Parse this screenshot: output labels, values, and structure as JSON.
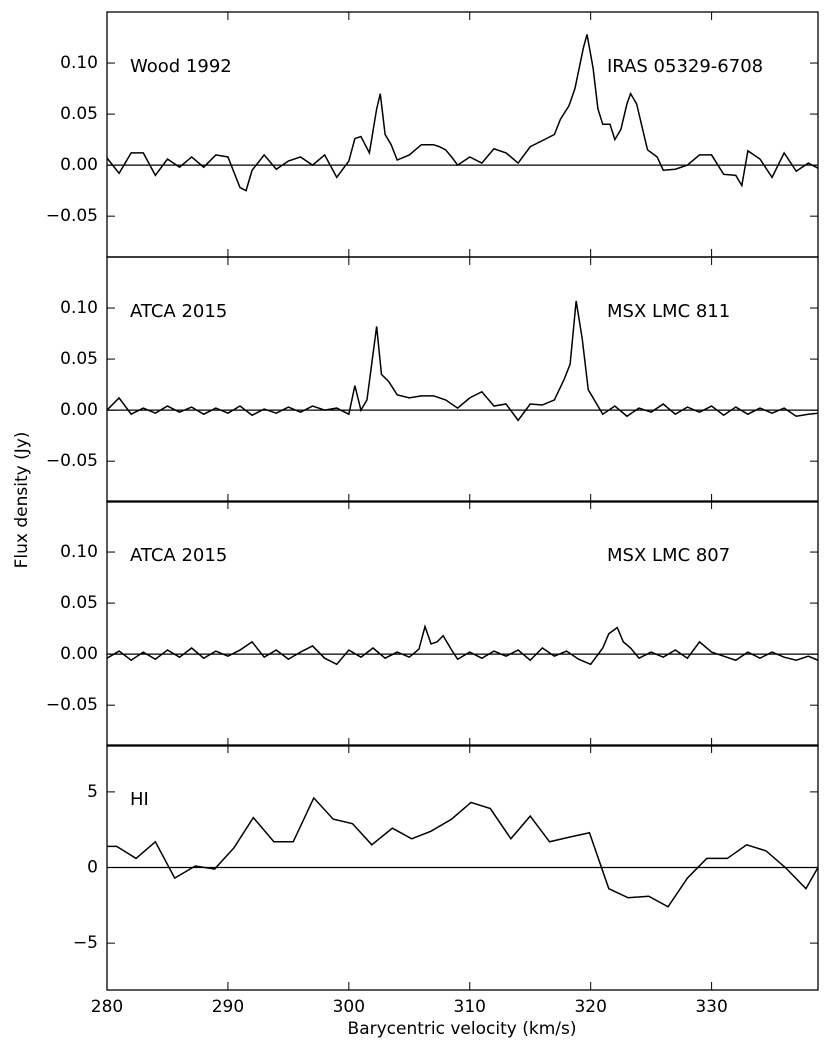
{
  "xlabel": "Barycentric velocity (km/s)",
  "ylabel": "Flux density (Jy)",
  "xlim": [
    280,
    338.8
  ],
  "xticks": [
    280,
    290,
    300,
    310,
    320,
    330
  ],
  "chart_data": [
    {
      "type": "line",
      "annotations": [
        "Wood 1992",
        "IRAS 05329-6708"
      ],
      "color": "#000000",
      "ylim": [
        -0.09,
        0.15
      ],
      "yticks": [
        {
          "value": 0.1,
          "label": "0.10"
        },
        0.05,
        {
          "value": 0,
          "label": "0.00"
        },
        {
          "value": -0.05,
          "label": "−0.05"
        }
      ],
      "x": [
        280,
        281,
        282,
        283,
        284,
        285,
        286,
        287,
        288,
        289,
        290,
        291,
        291.5,
        292,
        293,
        294,
        295,
        296,
        297,
        298,
        299,
        300,
        300.5,
        301,
        301.7,
        302.3,
        302.6,
        303,
        303.5,
        304,
        305,
        306,
        307,
        307.5,
        308,
        308.5,
        309,
        310,
        311,
        312,
        313,
        314,
        315,
        316,
        317,
        317.5,
        318.2,
        318.7,
        319.4,
        319.7,
        320.2,
        320.6,
        321,
        321.6,
        322,
        322.5,
        323,
        323.3,
        323.8,
        324.7,
        325.5,
        326,
        327,
        328,
        329,
        330,
        331,
        332,
        332.5,
        333,
        334,
        335,
        336,
        337,
        338,
        338.8
      ],
      "values": [
        0.007,
        -0.008,
        0.012,
        0.012,
        -0.01,
        0.006,
        -0.002,
        0.008,
        -0.002,
        0.01,
        0.008,
        -0.022,
        -0.025,
        -0.005,
        0.01,
        -0.004,
        0.004,
        0.008,
        0.0,
        0.01,
        -0.012,
        0.004,
        0.026,
        0.028,
        0.012,
        0.055,
        0.07,
        0.03,
        0.02,
        0.005,
        0.01,
        0.02,
        0.02,
        0.018,
        0.015,
        0.008,
        0.0,
        0.008,
        0.002,
        0.016,
        0.012,
        0.002,
        0.018,
        0.024,
        0.03,
        0.045,
        0.058,
        0.075,
        0.115,
        0.128,
        0.095,
        0.055,
        0.04,
        0.04,
        0.025,
        0.035,
        0.06,
        0.07,
        0.06,
        0.015,
        0.008,
        -0.005,
        -0.004,
        0.0,
        0.01,
        0.01,
        -0.009,
        -0.01,
        -0.02,
        0.014,
        0.006,
        -0.012,
        0.012,
        -0.006,
        0.002,
        -0.003
      ]
    },
    {
      "type": "line",
      "annotations": [
        "ATCA 2015",
        "MSX LMC 811"
      ],
      "color": "#000000",
      "ylim": [
        -0.09,
        0.15
      ],
      "yticks": [
        {
          "value": 0.1,
          "label": "0.10"
        },
        0.05,
        {
          "value": 0,
          "label": "0.00"
        },
        {
          "value": -0.05,
          "label": "−0.05"
        }
      ],
      "x": [
        280,
        281,
        282,
        283,
        284,
        285,
        286,
        287,
        288,
        289,
        290,
        291,
        292,
        293,
        294,
        295,
        296,
        297,
        298,
        299,
        300,
        300.5,
        301,
        301.5,
        302,
        302.3,
        302.7,
        303.3,
        304,
        305,
        306,
        307,
        308,
        309,
        310,
        311,
        312,
        313,
        314,
        315,
        316,
        317,
        317.8,
        318.3,
        318.8,
        319.3,
        319.8,
        320.5,
        321,
        322,
        323,
        324,
        325,
        326,
        327,
        328,
        329,
        330,
        331,
        332,
        333,
        334,
        335,
        336,
        337,
        338,
        338.8
      ],
      "values": [
        0.0,
        0.012,
        -0.004,
        0.002,
        -0.003,
        0.004,
        -0.002,
        0.003,
        -0.004,
        0.002,
        -0.003,
        0.004,
        -0.005,
        0.001,
        -0.003,
        0.003,
        -0.002,
        0.004,
        0.0,
        0.002,
        -0.004,
        0.024,
        0.0,
        0.01,
        0.055,
        0.082,
        0.035,
        0.028,
        0.015,
        0.012,
        0.014,
        0.014,
        0.01,
        0.002,
        0.012,
        0.018,
        0.004,
        0.006,
        -0.01,
        0.006,
        0.005,
        0.01,
        0.03,
        0.045,
        0.107,
        0.07,
        0.02,
        0.006,
        -0.004,
        0.004,
        -0.006,
        0.002,
        -0.002,
        0.006,
        -0.004,
        0.003,
        -0.002,
        0.004,
        -0.005,
        0.003,
        -0.004,
        0.002,
        -0.003,
        0.002,
        -0.006,
        -0.004,
        -0.003
      ]
    },
    {
      "type": "line",
      "annotations": [
        "ATCA 2015",
        "MSX LMC 807"
      ],
      "color": "#000000",
      "ylim": [
        -0.09,
        0.15
      ],
      "yticks": [
        {
          "value": 0.1,
          "label": "0.10"
        },
        0.05,
        {
          "value": 0,
          "label": "0.00"
        },
        {
          "value": -0.05,
          "label": "−0.05"
        }
      ],
      "x": [
        280,
        281,
        282,
        283,
        284,
        285,
        286,
        287,
        288,
        289,
        290,
        291,
        292,
        293,
        294,
        295,
        296,
        297,
        298,
        299,
        300,
        301,
        302,
        303,
        304,
        305,
        305.8,
        306.3,
        306.8,
        307.3,
        307.8,
        308.5,
        309,
        310,
        311,
        312,
        313,
        314,
        315,
        316,
        317,
        318,
        319,
        320,
        321,
        321.5,
        322.2,
        322.7,
        323.3,
        324,
        325,
        326,
        327,
        328,
        329,
        330,
        331,
        332,
        333,
        334,
        335,
        336,
        337,
        338,
        338.8
      ],
      "values": [
        -0.004,
        0.003,
        -0.006,
        0.002,
        -0.005,
        0.004,
        -0.003,
        0.006,
        -0.004,
        0.003,
        -0.002,
        0.004,
        0.012,
        -0.003,
        0.004,
        -0.005,
        0.002,
        0.008,
        -0.004,
        -0.01,
        0.004,
        -0.003,
        0.006,
        -0.004,
        0.002,
        -0.003,
        0.005,
        0.027,
        0.01,
        0.012,
        0.018,
        0.004,
        -0.005,
        0.002,
        -0.004,
        0.003,
        -0.002,
        0.004,
        -0.006,
        0.006,
        -0.002,
        0.003,
        -0.005,
        -0.01,
        0.006,
        0.02,
        0.026,
        0.012,
        0.006,
        -0.004,
        0.002,
        -0.003,
        0.004,
        -0.004,
        0.012,
        0.002,
        -0.002,
        -0.006,
        0.002,
        -0.004,
        0.002,
        -0.003,
        -0.006,
        -0.002,
        -0.006
      ]
    },
    {
      "type": "line",
      "annotations": [
        "HI"
      ],
      "color": "#000000",
      "ylim": [
        -8.1,
        8.1
      ],
      "yticks": [
        5,
        0,
        {
          "value": -5,
          "label": "−5"
        }
      ],
      "x": [
        280,
        280.8,
        282.4,
        284,
        285.6,
        287.3,
        288.9,
        290.5,
        292.1,
        293.8,
        295.4,
        297.1,
        298.7,
        300.3,
        301.9,
        303.6,
        305.2,
        306.8,
        308.5,
        310.1,
        311.7,
        313.4,
        315,
        316.6,
        318.2,
        319.9,
        321.5,
        323.1,
        324.8,
        326.4,
        328,
        329.6,
        331.3,
        332.9,
        334.5,
        336.1,
        337.8,
        338.8
      ],
      "values": [
        1.4,
        1.4,
        0.6,
        1.7,
        -0.7,
        0.1,
        -0.1,
        1.3,
        3.3,
        1.7,
        1.7,
        4.6,
        3.2,
        2.9,
        1.5,
        2.6,
        1.9,
        2.4,
        3.2,
        4.3,
        3.9,
        1.9,
        3.4,
        1.7,
        2.0,
        2.3,
        -1.4,
        -2.0,
        -1.9,
        -2.6,
        -0.7,
        0.6,
        0.6,
        1.5,
        1.1,
        0,
        -1.4,
        0
      ]
    }
  ]
}
